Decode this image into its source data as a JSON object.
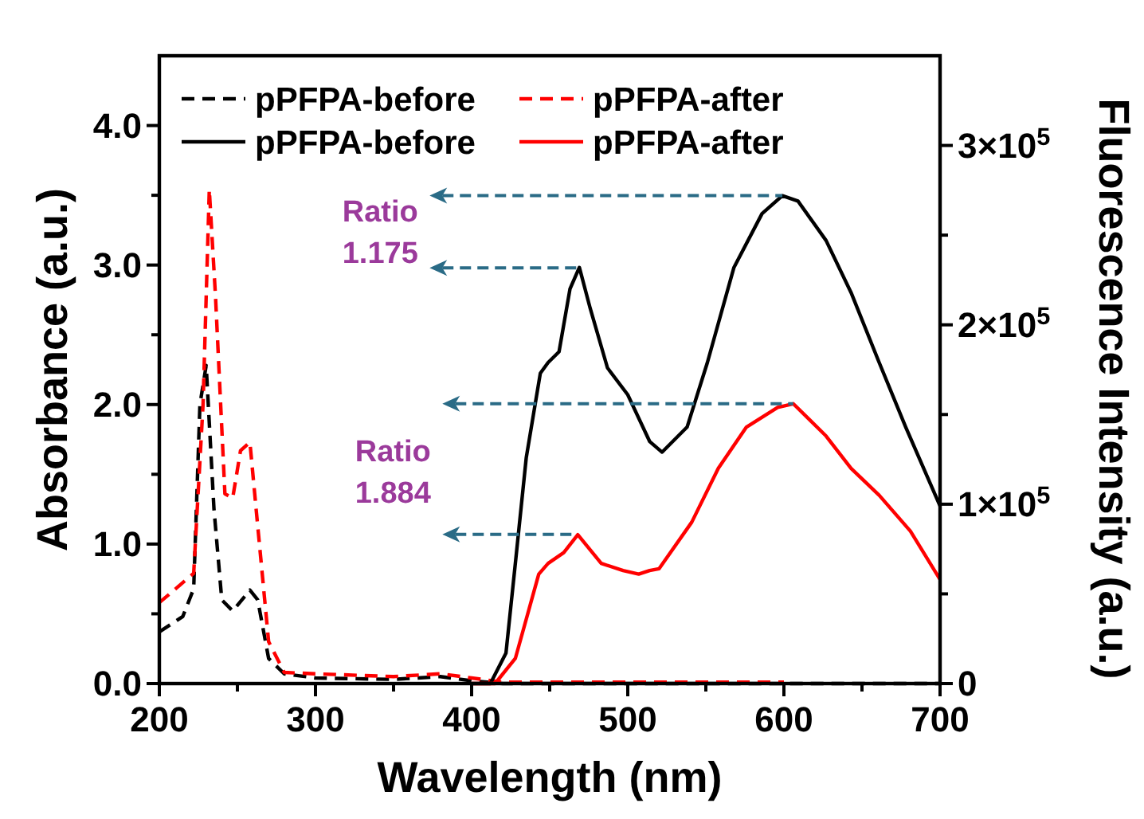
{
  "chart_data": {
    "type": "line",
    "xlabel": "Wavelength (nm)",
    "ylabel": "Absorbance (a.u.)",
    "y2label": "Fluorescence Intensity (a.u.)",
    "xlim": [
      200,
      700
    ],
    "xticks": [
      200,
      {
        "value": 250,
        "label": null
      },
      300,
      {
        "value": 350,
        "label": null
      },
      400,
      {
        "value": 450,
        "label": null
      },
      500,
      {
        "value": 550,
        "label": null
      },
      600,
      {
        "value": 650,
        "label": null
      },
      700
    ],
    "ylim": [
      0,
      4.5
    ],
    "yticks": [
      "0.0",
      {
        "value": 0.5,
        "label": null
      },
      {
        "value": 1,
        "label": "1.0"
      },
      {
        "value": 1.5,
        "label": null
      },
      {
        "value": 2,
        "label": "2.0"
      },
      {
        "value": 2.5,
        "label": null
      },
      {
        "value": 3,
        "label": "3.0"
      },
      {
        "value": 3.5,
        "label": null
      },
      {
        "value": 4,
        "label": "4.0"
      }
    ],
    "y2lim": [
      0,
      350000
    ],
    "y2ticks": [
      0,
      {
        "value": 50000,
        "label": null
      },
      {
        "value": 100000,
        "label": "1×10$^{5}$"
      },
      {
        "value": 150000,
        "label": null
      },
      {
        "value": 200000,
        "label": "2×10$^{5}$"
      },
      {
        "value": 250000,
        "label": null
      },
      {
        "value": 300000,
        "label": "3×10$^{5}$"
      }
    ],
    "grid": false,
    "legend": "top",
    "marker": "none",
    "series": [
      {
        "name": "pPFPA-before",
        "color": "#000000",
        "line_style": "dashed",
        "x": [
          200,
          215,
          222,
          226,
          230,
          235,
          240,
          247,
          258,
          263,
          270,
          280,
          300,
          350,
          380,
          400,
          420,
          500,
          600,
          700
        ],
        "values": [
          0.37,
          0.48,
          0.68,
          2.0,
          2.28,
          1.25,
          0.6,
          0.52,
          0.67,
          0.6,
          0.18,
          0.07,
          0.04,
          0.03,
          0.05,
          0.02,
          0,
          0,
          0,
          0
        ]
      },
      {
        "name": "pPFPA-after",
        "color": "#ff0000",
        "line_style": "dashed",
        "x": [
          200,
          222,
          228,
          232,
          236,
          242,
          247,
          252,
          258,
          262,
          270,
          280,
          300,
          350,
          380,
          400,
          420,
          500,
          600
        ],
        "values": [
          0.58,
          0.79,
          2.0,
          3.54,
          2.77,
          1.36,
          1.33,
          1.67,
          1.73,
          1.25,
          0.3,
          0.08,
          0.07,
          0.05,
          0.07,
          0.04,
          0.01,
          0.01,
          0.01
        ]
      },
      {
        "name": "pPFPA-before",
        "color": "#000000",
        "line_style": "solid",
        "axis": "y2",
        "x": [
          400,
          412,
          422,
          428,
          435,
          444,
          449,
          456,
          463,
          469,
          476,
          487,
          500,
          514,
          522,
          538,
          551,
          568,
          586,
          599,
          609,
          627,
          643,
          661,
          678,
          700
        ],
        "values": [
          0,
          0,
          17000,
          67000,
          126000,
          173000,
          179000,
          185000,
          220000,
          232000,
          209000,
          176000,
          161000,
          135000,
          129000,
          143000,
          179000,
          232000,
          262000,
          272000,
          269000,
          247000,
          218000,
          179000,
          143000,
          99000
        ]
      },
      {
        "name": "pPFPA-after",
        "color": "#ff0000",
        "line_style": "solid",
        "axis": "y2",
        "x": [
          400,
          415,
          428,
          443,
          449,
          459,
          468,
          483,
          497,
          507,
          514,
          520,
          541,
          558,
          576,
          596,
          606,
          627,
          643,
          661,
          681,
          700
        ],
        "values": [
          0,
          0,
          14000,
          61000,
          67000,
          73000,
          83000,
          67000,
          63000,
          61000,
          63000,
          64000,
          90000,
          120000,
          143000,
          154000,
          156000,
          138000,
          120000,
          105000,
          85000,
          58000
        ]
      }
    ],
    "annotations": [
      {
        "text": "Ratio 1.175",
        "x": 469,
        "y": 2.98
      },
      {
        "text": "Ratio 1.884",
        "x": 468,
        "y": 1.07
      }
    ]
  }
}
